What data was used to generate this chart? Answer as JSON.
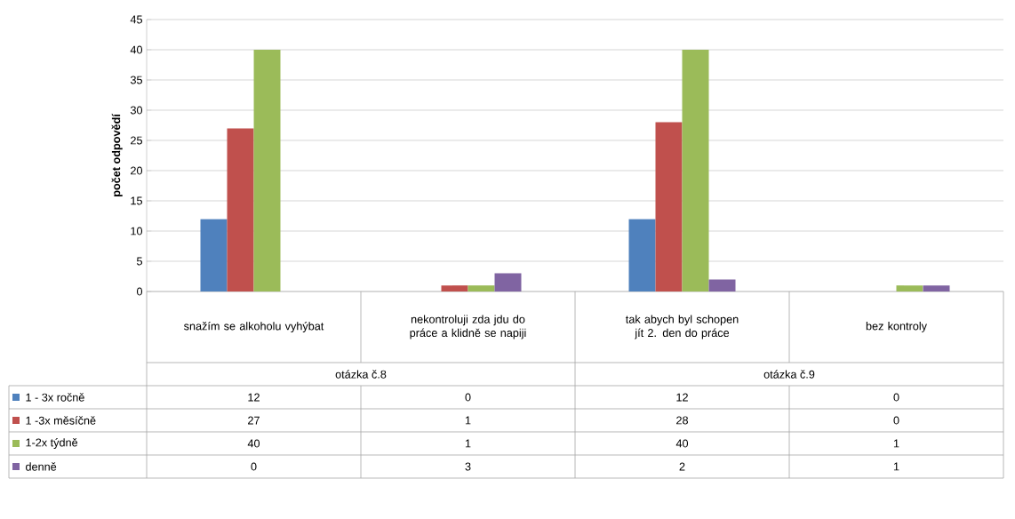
{
  "chart_data": {
    "type": "bar",
    "ylabel": "počet odpovědí",
    "categories": [
      "snažím se alkoholu vyhýbat",
      "nekontroluji zda jdu do práce a klidně se napiji",
      "tak abych byl schopen jít 2. den do práce",
      "bez kontroly"
    ],
    "annotations": [
      "otázka č.8",
      "otázka č.9"
    ],
    "series": [
      {
        "name": "1 - 3x ročně",
        "color": "#4f81bd",
        "values": [
          12,
          0,
          12,
          0
        ]
      },
      {
        "name": "1 -3x měsíčně",
        "color": "#c0504d",
        "values": [
          27,
          1,
          28,
          0
        ]
      },
      {
        "name": "1-2x týdně",
        "color": "#9bbb59",
        "values": [
          40,
          1,
          40,
          1
        ]
      },
      {
        "name": "denně",
        "color": "#8064a2",
        "values": [
          0,
          3,
          2,
          1
        ]
      }
    ],
    "ylim": [
      0,
      45
    ],
    "yticks": [
      0,
      5,
      10,
      15,
      20,
      25,
      30,
      35,
      40,
      45
    ],
    "grid": "y",
    "legend": "bottom",
    "data_labels": true
  }
}
